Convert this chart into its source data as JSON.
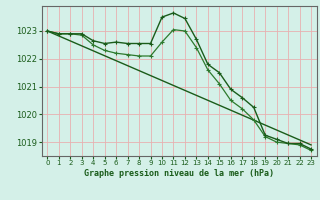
{
  "title": "Graphe pression niveau de la mer (hPa)",
  "bg_color": "#d4f0e8",
  "grid_color": "#e8b0b0",
  "line_color": "#1a5c1a",
  "line_color2": "#2d7a2d",
  "xlim": [
    -0.5,
    23.5
  ],
  "ylim": [
    1018.5,
    1023.9
  ],
  "yticks": [
    1019,
    1020,
    1021,
    1022,
    1023
  ],
  "xticks": [
    0,
    1,
    2,
    3,
    4,
    5,
    6,
    7,
    8,
    9,
    10,
    11,
    12,
    13,
    14,
    15,
    16,
    17,
    18,
    19,
    20,
    21,
    22,
    23
  ],
  "series1_x": [
    0,
    1,
    2,
    3,
    4,
    5,
    6,
    7,
    8,
    9,
    10,
    11,
    12,
    13,
    14,
    15,
    16,
    17,
    18,
    19,
    20,
    21,
    22,
    23
  ],
  "series1_y": [
    1023.0,
    1022.9,
    1022.9,
    1022.9,
    1022.65,
    1022.55,
    1022.6,
    1022.55,
    1022.55,
    1022.55,
    1023.5,
    1023.65,
    1023.45,
    1022.7,
    1021.8,
    1021.5,
    1020.9,
    1020.6,
    1020.25,
    1019.25,
    1019.1,
    1018.95,
    1018.95,
    1018.75
  ],
  "series2_x": [
    0,
    1,
    2,
    3,
    4,
    5,
    6,
    7,
    8,
    9,
    10,
    11,
    12,
    13,
    14,
    15,
    16,
    17,
    18,
    19,
    20,
    21,
    22,
    23
  ],
  "series2_y": [
    1023.0,
    1022.9,
    1022.9,
    1022.85,
    1022.5,
    1022.3,
    1022.2,
    1022.15,
    1022.1,
    1022.1,
    1022.6,
    1023.05,
    1023.0,
    1022.4,
    1021.6,
    1021.1,
    1020.5,
    1020.2,
    1019.8,
    1019.2,
    1019.0,
    1018.95,
    1018.9,
    1018.7
  ],
  "trend_x": [
    0,
    23
  ],
  "trend_y": [
    1023.0,
    1018.9
  ]
}
